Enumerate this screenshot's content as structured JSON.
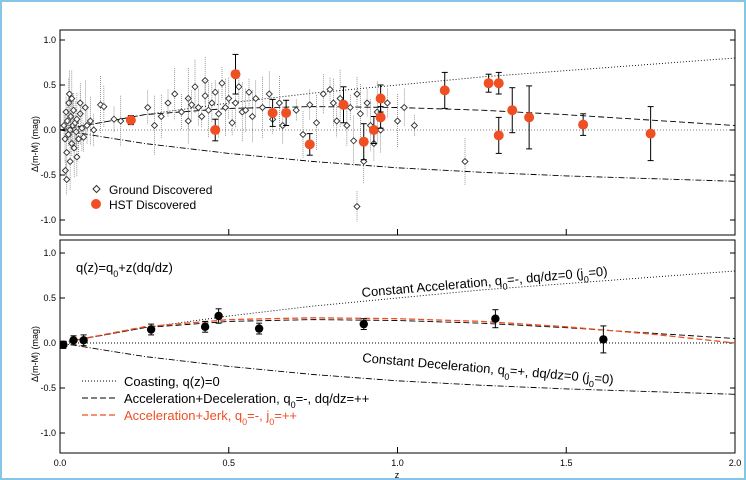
{
  "colors": {
    "frame": "#87c5e6",
    "hst": "#f04e23",
    "ground": "#333333",
    "black": "#000000",
    "jerk": "#f04e23"
  },
  "chart_data": [
    {
      "type": "scatter",
      "panel": "top",
      "xlim": [
        0,
        2.0
      ],
      "ylim": [
        -1.2,
        1.2
      ],
      "ylabel": "Δ(m-M) (mag)",
      "yticks": [
        "1.0",
        "0.5",
        "0.0",
        "-0.5",
        "-1.0"
      ],
      "legend": {
        "placement": "bottom-left",
        "entries": [
          "Ground Discovered",
          "HST Discovered"
        ]
      },
      "series": [
        {
          "name": "HST Discovered",
          "marker": "filled-circle",
          "points": [
            {
              "x": 0.21,
              "y": 0.11,
              "err": 0.05
            },
            {
              "x": 0.46,
              "y": 0.0,
              "err": 0.12
            },
            {
              "x": 0.52,
              "y": 0.62,
              "err": 0.22
            },
            {
              "x": 0.63,
              "y": 0.19,
              "err": 0.15
            },
            {
              "x": 0.67,
              "y": 0.19,
              "err": 0.14
            },
            {
              "x": 0.74,
              "y": -0.16,
              "err": 0.12
            },
            {
              "x": 0.84,
              "y": 0.28,
              "err": 0.2
            },
            {
              "x": 0.9,
              "y": -0.13,
              "err": 0.2
            },
            {
              "x": 0.93,
              "y": 0.0,
              "err": 0.15
            },
            {
              "x": 0.95,
              "y": 0.14,
              "err": 0.12
            },
            {
              "x": 0.95,
              "y": 0.35,
              "err": 0.15
            },
            {
              "x": 1.14,
              "y": 0.44,
              "err": 0.2
            },
            {
              "x": 1.27,
              "y": 0.52,
              "err": 0.1
            },
            {
              "x": 1.3,
              "y": 0.52,
              "err": 0.12
            },
            {
              "x": 1.3,
              "y": -0.06,
              "err": 0.2
            },
            {
              "x": 1.34,
              "y": 0.22,
              "err": 0.25
            },
            {
              "x": 1.39,
              "y": 0.14,
              "err": 0.35
            },
            {
              "x": 1.55,
              "y": 0.06,
              "err": 0.12
            },
            {
              "x": 1.75,
              "y": -0.04,
              "err": 0.3
            }
          ]
        },
        {
          "name": "Ground Discovered",
          "marker": "open-diamond",
          "points": [
            {
              "x": 0.012,
              "y": 0.05
            },
            {
              "x": 0.015,
              "y": -0.1
            },
            {
              "x": 0.018,
              "y": 0.2
            },
            {
              "x": 0.02,
              "y": -0.25
            },
            {
              "x": 0.022,
              "y": 0.1
            },
            {
              "x": 0.025,
              "y": -0.05
            },
            {
              "x": 0.026,
              "y": 0.3
            },
            {
              "x": 0.03,
              "y": 0.0
            },
            {
              "x": 0.03,
              "y": -0.35
            },
            {
              "x": 0.032,
              "y": 0.15
            },
            {
              "x": 0.035,
              "y": -0.15
            },
            {
              "x": 0.038,
              "y": 0.05
            },
            {
              "x": 0.04,
              "y": 0.22
            },
            {
              "x": 0.042,
              "y": -0.2
            },
            {
              "x": 0.045,
              "y": 0.08
            },
            {
              "x": 0.048,
              "y": -0.02
            },
            {
              "x": 0.05,
              "y": 0.12
            },
            {
              "x": 0.055,
              "y": -0.1
            },
            {
              "x": 0.06,
              "y": 0.18
            },
            {
              "x": 0.065,
              "y": 0.02
            },
            {
              "x": 0.07,
              "y": -0.08
            },
            {
              "x": 0.075,
              "y": 0.25
            },
            {
              "x": 0.08,
              "y": 0.05
            },
            {
              "x": 0.016,
              "y": -0.45
            },
            {
              "x": 0.028,
              "y": 0.4
            },
            {
              "x": 0.02,
              "y": -0.55
            },
            {
              "x": 0.035,
              "y": 0.35
            },
            {
              "x": 0.05,
              "y": -0.3
            },
            {
              "x": 0.06,
              "y": 0.3
            },
            {
              "x": 0.09,
              "y": 0.1
            },
            {
              "x": 0.1,
              "y": 0.0
            },
            {
              "x": 0.12,
              "y": 0.28
            },
            {
              "x": 0.13,
              "y": 0.26
            },
            {
              "x": 0.16,
              "y": 0.12
            },
            {
              "x": 0.18,
              "y": 0.1
            },
            {
              "x": 0.26,
              "y": 0.25
            },
            {
              "x": 0.28,
              "y": 0.05
            },
            {
              "x": 0.3,
              "y": 0.15
            },
            {
              "x": 0.32,
              "y": 0.3
            },
            {
              "x": 0.34,
              "y": 0.4
            },
            {
              "x": 0.36,
              "y": 0.2
            },
            {
              "x": 0.38,
              "y": 0.35
            },
            {
              "x": 0.38,
              "y": 0.1
            },
            {
              "x": 0.39,
              "y": 0.28
            },
            {
              "x": 0.4,
              "y": 0.48
            },
            {
              "x": 0.41,
              "y": 0.25
            },
            {
              "x": 0.42,
              "y": 0.15
            },
            {
              "x": 0.43,
              "y": 0.55
            },
            {
              "x": 0.43,
              "y": 0.38
            },
            {
              "x": 0.44,
              "y": 0.22
            },
            {
              "x": 0.45,
              "y": 0.3
            },
            {
              "x": 0.46,
              "y": 0.42
            },
            {
              "x": 0.47,
              "y": 0.18
            },
            {
              "x": 0.48,
              "y": 0.52
            },
            {
              "x": 0.49,
              "y": 0.25
            },
            {
              "x": 0.5,
              "y": 0.35
            },
            {
              "x": 0.51,
              "y": 0.08
            },
            {
              "x": 0.52,
              "y": 0.3
            },
            {
              "x": 0.53,
              "y": 0.48
            },
            {
              "x": 0.54,
              "y": 0.2
            },
            {
              "x": 0.55,
              "y": 0.22
            },
            {
              "x": 0.56,
              "y": 0.42
            },
            {
              "x": 0.57,
              "y": 0.15
            },
            {
              "x": 0.58,
              "y": 0.35
            },
            {
              "x": 0.6,
              "y": 0.25
            },
            {
              "x": 0.62,
              "y": 0.4
            },
            {
              "x": 0.63,
              "y": 0.12
            },
            {
              "x": 0.65,
              "y": 0.3
            },
            {
              "x": 0.66,
              "y": 0.05
            },
            {
              "x": 0.7,
              "y": 0.22
            },
            {
              "x": 0.72,
              "y": -0.05
            },
            {
              "x": 0.74,
              "y": 0.28
            },
            {
              "x": 0.76,
              "y": 0.08
            },
            {
              "x": 0.78,
              "y": 0.4
            },
            {
              "x": 0.8,
              "y": 0.45
            },
            {
              "x": 0.81,
              "y": 0.3
            },
            {
              "x": 0.82,
              "y": 0.1
            },
            {
              "x": 0.83,
              "y": 0.35
            },
            {
              "x": 0.85,
              "y": 0.05
            },
            {
              "x": 0.86,
              "y": 0.25
            },
            {
              "x": 0.87,
              "y": -0.12
            },
            {
              "x": 0.88,
              "y": 0.4
            },
            {
              "x": 0.89,
              "y": 0.18
            },
            {
              "x": 0.9,
              "y": -0.35
            },
            {
              "x": 0.91,
              "y": 0.3
            },
            {
              "x": 0.92,
              "y": 0.05
            },
            {
              "x": 0.93,
              "y": -0.15
            },
            {
              "x": 0.94,
              "y": 0.2
            },
            {
              "x": 0.95,
              "y": 0.0
            },
            {
              "x": 0.97,
              "y": 0.3
            },
            {
              "x": 1.0,
              "y": 0.1
            },
            {
              "x": 1.02,
              "y": 0.25
            },
            {
              "x": 1.05,
              "y": 0.05
            },
            {
              "x": 1.2,
              "y": -0.35
            },
            {
              "x": 0.88,
              "y": -0.85
            }
          ]
        },
        {
          "name": "Coasting",
          "line": "dotted",
          "x": [
            0,
            0.25,
            0.5,
            0.75,
            1.0,
            1.25,
            1.5,
            1.75,
            2.0
          ],
          "y": [
            0,
            0.17,
            0.3,
            0.41,
            0.5,
            0.59,
            0.66,
            0.73,
            0.8
          ]
        },
        {
          "name": "Acceleration+Deceleration",
          "line": "dashed",
          "x": [
            0,
            0.25,
            0.5,
            0.75,
            1.0,
            1.25,
            1.5,
            1.75,
            2.0
          ],
          "y": [
            0,
            0.17,
            0.24,
            0.26,
            0.25,
            0.22,
            0.17,
            0.11,
            0.05
          ]
        },
        {
          "name": "Constant Deceleration",
          "line": "dashdot",
          "x": [
            0,
            0.25,
            0.5,
            0.75,
            1.0,
            1.25,
            1.5,
            1.75,
            2.0
          ],
          "y": [
            0,
            -0.15,
            -0.26,
            -0.35,
            -0.42,
            -0.47,
            -0.51,
            -0.54,
            -0.57
          ]
        }
      ]
    },
    {
      "type": "line",
      "panel": "bottom",
      "xlim": [
        0,
        2.0
      ],
      "ylim": [
        -1.2,
        1.2
      ],
      "xlabel": "z",
      "ylabel": "Δ(m-M) (mag)",
      "xticks": [
        "0.0",
        "0.5",
        "1.0",
        "1.5",
        "2.0"
      ],
      "yticks": [
        "1.0",
        "0.5",
        "0.0",
        "-0.5",
        "-1.0"
      ],
      "annotations": {
        "model_title": "q(z)=q0+z(dq/dz)",
        "const_accel": "Constant Acceleration, q0=-, dq/dz=0 (j0=0)",
        "const_decel": "Constant Deceleration, q0=+, dq/dz=0 (j0=0)"
      },
      "legend": {
        "placement": "bottom-left",
        "entries": [
          "Coasting, q(z)=0",
          "Acceleration+Deceleration, q0=-, dq/dz=++",
          "Acceleration+Jerk, q0=-, j0=++"
        ]
      },
      "binned": [
        {
          "x": 0.01,
          "y": -0.02,
          "err": 0.04
        },
        {
          "x": 0.04,
          "y": 0.03,
          "err": 0.05
        },
        {
          "x": 0.07,
          "y": 0.03,
          "err": 0.06
        },
        {
          "x": 0.27,
          "y": 0.15,
          "err": 0.06
        },
        {
          "x": 0.43,
          "y": 0.18,
          "err": 0.06
        },
        {
          "x": 0.47,
          "y": 0.3,
          "err": 0.08
        },
        {
          "x": 0.59,
          "y": 0.16,
          "err": 0.06
        },
        {
          "x": 0.9,
          "y": 0.21,
          "err": 0.06
        },
        {
          "x": 1.29,
          "y": 0.27,
          "err": 0.1
        },
        {
          "x": 1.61,
          "y": 0.04,
          "err": 0.15
        }
      ],
      "series": [
        {
          "name": "Coasting, q(z)=0",
          "line": "dotted",
          "color": "#000000",
          "x": [
            0,
            0.25,
            0.5,
            0.75,
            1.0,
            1.25,
            1.5,
            1.75,
            2.0
          ],
          "y": [
            0,
            0,
            0,
            0,
            0,
            0,
            0,
            0,
            0
          ]
        },
        {
          "name": "Constant Acceleration",
          "line": "dotted",
          "color": "#000000",
          "x": [
            0,
            0.25,
            0.5,
            0.75,
            1.0,
            1.25,
            1.5,
            1.75,
            2.0
          ],
          "y": [
            0,
            0.17,
            0.3,
            0.41,
            0.5,
            0.59,
            0.66,
            0.73,
            0.8
          ]
        },
        {
          "name": "Constant Deceleration",
          "line": "dashdot",
          "color": "#000000",
          "x": [
            0,
            0.25,
            0.5,
            0.75,
            1.0,
            1.25,
            1.5,
            1.75,
            2.0
          ],
          "y": [
            0,
            -0.15,
            -0.26,
            -0.35,
            -0.42,
            -0.47,
            -0.51,
            -0.54,
            -0.57
          ]
        },
        {
          "name": "Acceleration+Deceleration",
          "line": "dashed",
          "color": "#000000",
          "x": [
            0,
            0.25,
            0.5,
            0.75,
            1.0,
            1.25,
            1.5,
            1.75,
            2.0
          ],
          "y": [
            0,
            0.17,
            0.24,
            0.26,
            0.25,
            0.22,
            0.17,
            0.11,
            0.05
          ]
        },
        {
          "name": "Acceleration+Jerk",
          "line": "dashed",
          "color": "#f04e23",
          "x": [
            0,
            0.25,
            0.5,
            0.75,
            1.0,
            1.25,
            1.5,
            1.75,
            2.0
          ],
          "y": [
            0,
            0.18,
            0.26,
            0.28,
            0.27,
            0.24,
            0.18,
            0.1,
            0.0
          ]
        }
      ]
    }
  ]
}
